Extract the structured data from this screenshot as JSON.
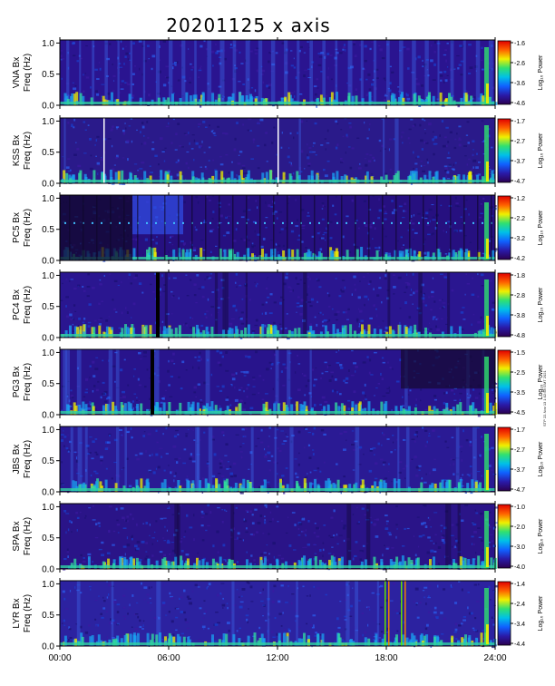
{
  "title": "20201125  x  axis",
  "side_stamp": "STP 22-Nov 13 1:02:58 GMT 2021",
  "chart_data": {
    "type": "heatmap",
    "x_axis": {
      "range_hours": [
        0,
        24
      ],
      "tick_labels": [
        "00:00",
        "06:00",
        "12:00",
        "18:00",
        "24:00"
      ]
    },
    "y_axis": {
      "label": "Freq (Hz)",
      "range": [
        0.0,
        1.05
      ],
      "tick_labels": [
        "0.0",
        "0.5",
        "1.0"
      ]
    },
    "colorbar_label": "Log₁₀ Power",
    "colorbar_colors": [
      "#2b0050",
      "#2a1aa8",
      "#1060ff",
      "#00c0e8",
      "#30e070",
      "#f0f000",
      "#ff6000",
      "#e00000"
    ],
    "panels": [
      {
        "station": "VNA Bx",
        "colorbar_ticks": [
          "-1.6",
          "-2.6",
          "-3.6",
          "-4.6"
        ],
        "log_power_range": [
          -4.6,
          -1.6
        ]
      },
      {
        "station": "KSS Bx",
        "colorbar_ticks": [
          "-1.7",
          "-2.7",
          "-3.7",
          "-4.7"
        ],
        "log_power_range": [
          -4.7,
          -1.7
        ]
      },
      {
        "station": "PC5 Bx",
        "colorbar_ticks": [
          "-1.2",
          "-2.2",
          "-3.2",
          "-4.2"
        ],
        "log_power_range": [
          -4.2,
          -1.2
        ]
      },
      {
        "station": "PC4 Bx",
        "colorbar_ticks": [
          "-1.8",
          "-2.8",
          "-3.8",
          "-4.8"
        ],
        "log_power_range": [
          -4.8,
          -1.8
        ]
      },
      {
        "station": "PG3 Bx",
        "colorbar_ticks": [
          "-1.5",
          "-2.5",
          "-3.5",
          "-4.5"
        ],
        "log_power_range": [
          -4.5,
          -1.5
        ]
      },
      {
        "station": "JBS Bx",
        "colorbar_ticks": [
          "-1.7",
          "-2.7",
          "-3.7",
          "-4.7"
        ],
        "log_power_range": [
          -4.7,
          -1.7
        ]
      },
      {
        "station": "SPA Bx",
        "colorbar_ticks": [
          "-1.0",
          "-2.0",
          "-3.0",
          "-4.0"
        ],
        "log_power_range": [
          -4.0,
          -1.0
        ]
      },
      {
        "station": "LYR Bx",
        "colorbar_ticks": [
          "-1.4",
          "-2.4",
          "-3.4",
          "-4.4"
        ],
        "log_power_range": [
          -4.4,
          -1.4
        ]
      }
    ]
  }
}
